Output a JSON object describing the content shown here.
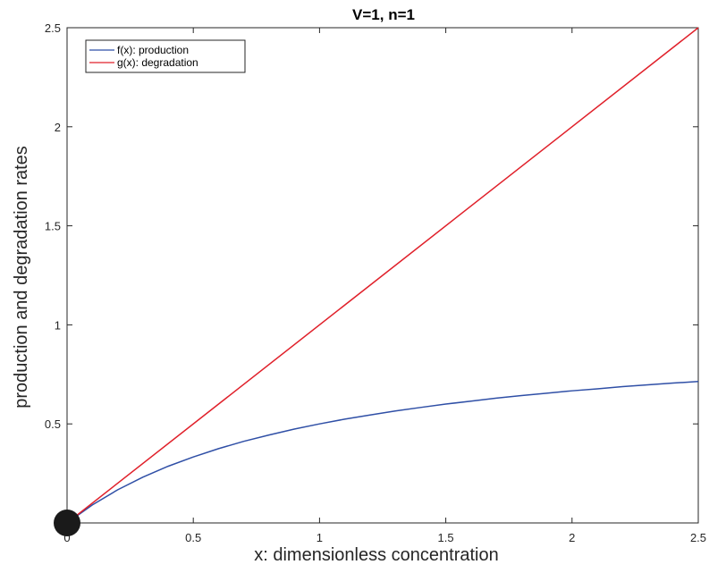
{
  "chart_data": {
    "type": "line",
    "title": "V=1, n=1",
    "xlabel": "x: dimensionless concentration",
    "ylabel": "production and degradation rates",
    "xlim": [
      0,
      2.5
    ],
    "ylim": [
      0,
      2.5
    ],
    "xticks": [
      0,
      0.5,
      1,
      1.5,
      2,
      2.5
    ],
    "xtick_labels": [
      "0",
      "0.5",
      "1",
      "1.5",
      "2",
      "2.5"
    ],
    "yticks": [
      0.5,
      1,
      1.5,
      2,
      2.5
    ],
    "ytick_labels": [
      "0.5",
      "1",
      "1.5",
      "2",
      "2.5"
    ],
    "grid": false,
    "legend_position": "top-left",
    "series": [
      {
        "name": "f(x): production",
        "color": "#2f4fa6",
        "x": [
          0,
          0.1,
          0.2,
          0.3,
          0.4,
          0.5,
          0.6,
          0.7,
          0.8,
          0.9,
          1.0,
          1.1,
          1.2,
          1.3,
          1.4,
          1.5,
          1.6,
          1.7,
          1.8,
          1.9,
          2.0,
          2.1,
          2.2,
          2.3,
          2.4,
          2.5
        ],
        "y": [
          0,
          0.091,
          0.167,
          0.231,
          0.286,
          0.333,
          0.375,
          0.412,
          0.444,
          0.474,
          0.5,
          0.524,
          0.545,
          0.565,
          0.583,
          0.6,
          0.615,
          0.63,
          0.643,
          0.655,
          0.667,
          0.677,
          0.688,
          0.697,
          0.706,
          0.714
        ]
      },
      {
        "name": "g(x): degradation",
        "color": "#e0202a",
        "x": [
          0,
          2.5
        ],
        "y": [
          0,
          2.5
        ]
      }
    ],
    "markers": [
      {
        "x": 0,
        "y": 0,
        "color": "#1a1a1a"
      }
    ]
  }
}
